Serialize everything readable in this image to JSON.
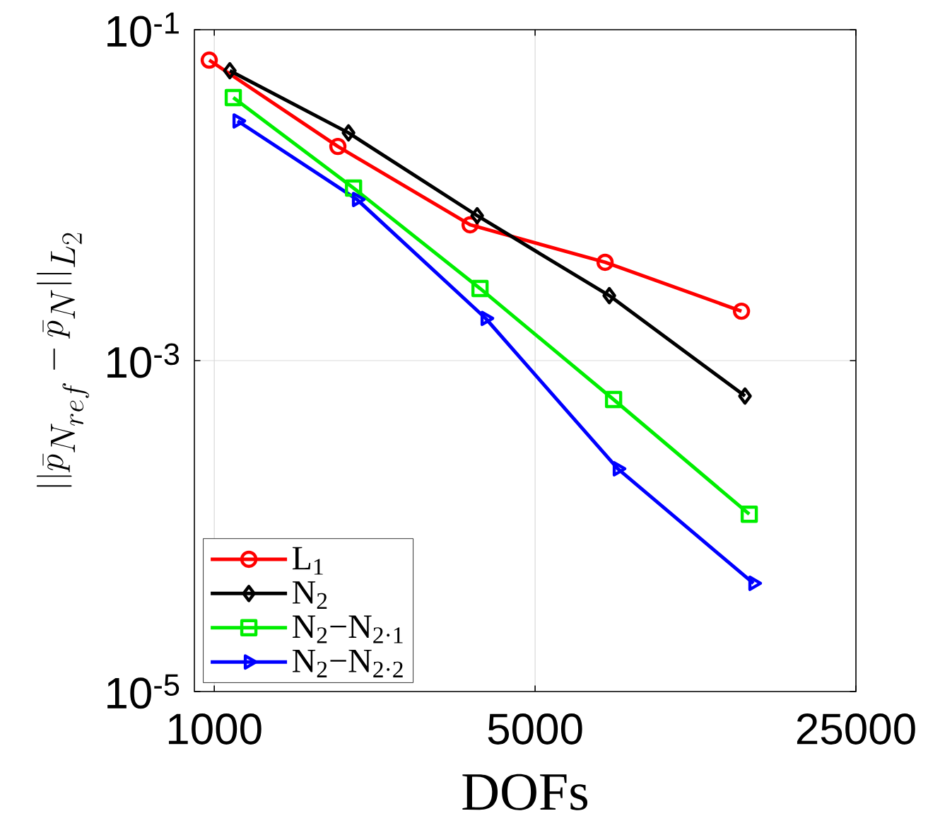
{
  "chart_data": {
    "type": "line",
    "xlabel": "DOFs",
    "ylabel": "||\\bar{p}_{N_{ref}} - \\bar{p}_N||_{L_2}",
    "log": "xy",
    "grid": true,
    "legend": "bottom left",
    "line_style": "solid",
    "xlim": [
      905,
      25000
    ],
    "ylim": [
      1e-05,
      0.1
    ],
    "xticks": [
      1000,
      5000,
      25000
    ],
    "yticks": [
      {
        "value": 0.1,
        "label": "10$^{-1}$"
      },
      {
        "value": 0.001,
        "label": "10$^{-3}$"
      },
      {
        "value": 1e-05,
        "label": "10$^{-5}$"
      }
    ],
    "series": [
      {
        "name": "L$_{1}$",
        "color": "#ff0000",
        "marker": "circle",
        "x": [
          975,
          1859,
          3609,
          7103,
          14080
        ],
        "values": [
          0.0655,
          0.0197,
          0.00662,
          0.00393,
          0.00199
        ]
      },
      {
        "name": "N$_{2}$",
        "color": "#000000",
        "marker": "diamond",
        "x": [
          1081,
          1961,
          3739,
          7255,
          14330
        ],
        "values": [
          0.0565,
          0.0238,
          0.00752,
          0.00247,
          0.000611
        ]
      },
      {
        "name": "N$_{2}$−N$_{2·1}$",
        "color": "#00ee00",
        "marker": "square",
        "x": [
          1100,
          2011,
          3793,
          7413,
          14640
        ],
        "values": [
          0.0389,
          0.01104,
          0.00273,
          0.000582,
          0.000118
        ]
      },
      {
        "name": "N$_{2}$−N$_{2·2}$",
        "color": "#0000ff",
        "marker": "triangle",
        "x": [
          1124,
          2046,
          3902,
          7570,
          14950
        ],
        "values": [
          0.0281,
          0.00942,
          0.0018,
          0.000222,
          4.51e-05
        ]
      }
    ]
  }
}
